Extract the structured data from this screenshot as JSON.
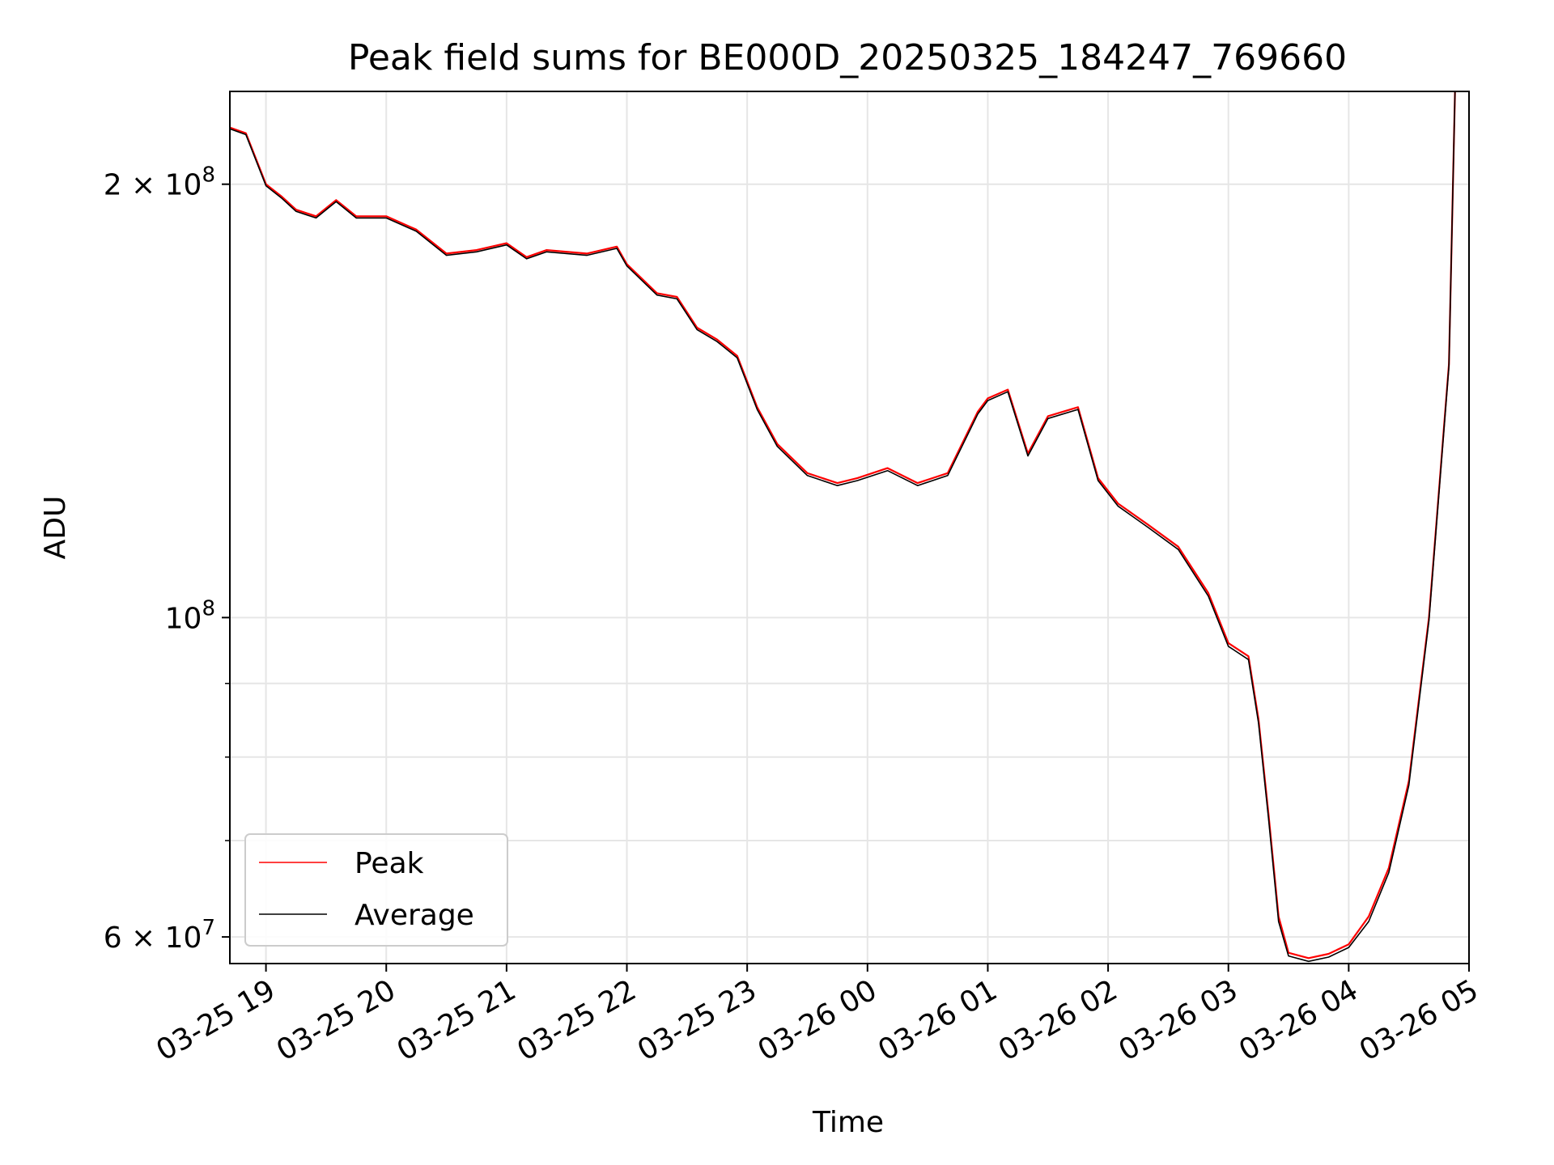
{
  "chart_data": {
    "type": "line",
    "title": "Peak field sums for BE000D_20250325_184247_769660",
    "xlabel": "Time",
    "ylabel": "ADU",
    "yscale": "log",
    "grid": true,
    "legend_position": "lower-left",
    "xlim": [
      "2025-03-25 18:42",
      "2025-03-26 05:00"
    ],
    "ylim": [
      57500000,
      232000000
    ],
    "x_ticks": [
      {
        "t": "2025-03-25 19:00",
        "label": "03-25 19"
      },
      {
        "t": "2025-03-25 20:00",
        "label": "03-25 20"
      },
      {
        "t": "2025-03-25 21:00",
        "label": "03-25 21"
      },
      {
        "t": "2025-03-25 22:00",
        "label": "03-25 22"
      },
      {
        "t": "2025-03-25 23:00",
        "label": "03-25 23"
      },
      {
        "t": "2025-03-26 00:00",
        "label": "03-26 00"
      },
      {
        "t": "2025-03-26 01:00",
        "label": "03-26 01"
      },
      {
        "t": "2025-03-26 02:00",
        "label": "03-26 02"
      },
      {
        "t": "2025-03-26 03:00",
        "label": "03-26 03"
      },
      {
        "t": "2025-03-26 04:00",
        "label": "03-26 04"
      },
      {
        "t": "2025-03-26 05:00",
        "label": "03-26 05"
      }
    ],
    "y_ticks_major": [
      {
        "v": 100000000,
        "base": "10",
        "exp": "8",
        "mant": ""
      },
      {
        "v": 200000000,
        "base": "10",
        "exp": "8",
        "mant": "2 × "
      },
      {
        "v": 60000000,
        "base": "10",
        "exp": "7",
        "mant": "6 × "
      }
    ],
    "y_ticks_minor": [
      70000000,
      80000000,
      90000000
    ],
    "series": [
      {
        "name": "Peak",
        "color": "#ff0000",
        "x": [
          "2025-03-25 18:42",
          "2025-03-25 18:50",
          "2025-03-25 19:00",
          "2025-03-25 19:08",
          "2025-03-25 19:15",
          "2025-03-25 19:25",
          "2025-03-25 19:35",
          "2025-03-25 19:45",
          "2025-03-25 20:00",
          "2025-03-25 20:15",
          "2025-03-25 20:30",
          "2025-03-25 20:45",
          "2025-03-25 21:00",
          "2025-03-25 21:10",
          "2025-03-25 21:20",
          "2025-03-25 21:40",
          "2025-03-25 21:55",
          "2025-03-25 22:00",
          "2025-03-25 22:15",
          "2025-03-25 22:25",
          "2025-03-25 22:35",
          "2025-03-25 22:45",
          "2025-03-25 22:55",
          "2025-03-25 23:05",
          "2025-03-25 23:15",
          "2025-03-25 23:30",
          "2025-03-25 23:45",
          "2025-03-25 23:55",
          "2025-03-26 00:10",
          "2025-03-26 00:25",
          "2025-03-26 00:40",
          "2025-03-26 00:55",
          "2025-03-26 01:00",
          "2025-03-26 01:10",
          "2025-03-26 01:20",
          "2025-03-26 01:30",
          "2025-03-26 01:45",
          "2025-03-26 01:55",
          "2025-03-26 02:05",
          "2025-03-26 02:20",
          "2025-03-26 02:35",
          "2025-03-26 02:50",
          "2025-03-26 03:00",
          "2025-03-26 03:10",
          "2025-03-26 03:15",
          "2025-03-26 03:20",
          "2025-03-26 03:25",
          "2025-03-26 03:30",
          "2025-03-26 03:40",
          "2025-03-26 03:50",
          "2025-03-26 04:00",
          "2025-03-26 04:10",
          "2025-03-26 04:20",
          "2025-03-26 04:30",
          "2025-03-26 04:40",
          "2025-03-26 04:50",
          "2025-03-26 04:53"
        ],
        "values": [
          219000000,
          217000000,
          200000000,
          196000000,
          192000000,
          190000000,
          195000000,
          190000000,
          190000000,
          186000000,
          179000000,
          180000000,
          182000000,
          178000000,
          180000000,
          179000000,
          181000000,
          176000000,
          168000000,
          167000000,
          159000000,
          156000000,
          152000000,
          140000000,
          132000000,
          126000000,
          124000000,
          125000000,
          127000000,
          124000000,
          126000000,
          139000000,
          142000000,
          144000000,
          130000000,
          138000000,
          140000000,
          125000000,
          120000000,
          116000000,
          112000000,
          104000000,
          96000000,
          94000000,
          85000000,
          73000000,
          62000000,
          58500000,
          58000000,
          58400000,
          59300000,
          62000000,
          67000000,
          77000000,
          100000000,
          150000000,
          232000000
        ]
      },
      {
        "name": "Average",
        "color": "#000000",
        "x": [
          "2025-03-25 18:42",
          "2025-03-25 18:50",
          "2025-03-25 19:00",
          "2025-03-25 19:08",
          "2025-03-25 19:15",
          "2025-03-25 19:25",
          "2025-03-25 19:35",
          "2025-03-25 19:45",
          "2025-03-25 20:00",
          "2025-03-25 20:15",
          "2025-03-25 20:30",
          "2025-03-25 20:45",
          "2025-03-25 21:00",
          "2025-03-25 21:10",
          "2025-03-25 21:20",
          "2025-03-25 21:40",
          "2025-03-25 21:55",
          "2025-03-25 22:00",
          "2025-03-25 22:15",
          "2025-03-25 22:25",
          "2025-03-25 22:35",
          "2025-03-25 22:45",
          "2025-03-25 22:55",
          "2025-03-25 23:05",
          "2025-03-25 23:15",
          "2025-03-25 23:30",
          "2025-03-25 23:45",
          "2025-03-25 23:55",
          "2025-03-26 00:10",
          "2025-03-26 00:25",
          "2025-03-26 00:40",
          "2025-03-26 00:55",
          "2025-03-26 01:00",
          "2025-03-26 01:10",
          "2025-03-26 01:20",
          "2025-03-26 01:30",
          "2025-03-26 01:45",
          "2025-03-26 01:55",
          "2025-03-26 02:05",
          "2025-03-26 02:20",
          "2025-03-26 02:35",
          "2025-03-26 02:50",
          "2025-03-26 03:00",
          "2025-03-26 03:10",
          "2025-03-26 03:15",
          "2025-03-26 03:20",
          "2025-03-26 03:25",
          "2025-03-26 03:30",
          "2025-03-26 03:40",
          "2025-03-26 03:50",
          "2025-03-26 04:00",
          "2025-03-26 04:10",
          "2025-03-26 04:20",
          "2025-03-26 04:30",
          "2025-03-26 04:40",
          "2025-03-26 04:50",
          "2025-03-26 04:53"
        ],
        "values": [
          218500000,
          216500000,
          199500000,
          195500000,
          191500000,
          189500000,
          194500000,
          189500000,
          189500000,
          185500000,
          178500000,
          179500000,
          181500000,
          177500000,
          179500000,
          178500000,
          180500000,
          175500000,
          167500000,
          166500000,
          158500000,
          155500000,
          151500000,
          139500000,
          131500000,
          125500000,
          123500000,
          124500000,
          126500000,
          123500000,
          125500000,
          138500000,
          141500000,
          143500000,
          129500000,
          137500000,
          139500000,
          124500000,
          119500000,
          115500000,
          111500000,
          103500000,
          95500000,
          93500000,
          84500000,
          72500000,
          61500000,
          58200000,
          57700000,
          58100000,
          59000000,
          61500000,
          66500000,
          76500000,
          99500000,
          149500000,
          232000000
        ]
      }
    ]
  }
}
